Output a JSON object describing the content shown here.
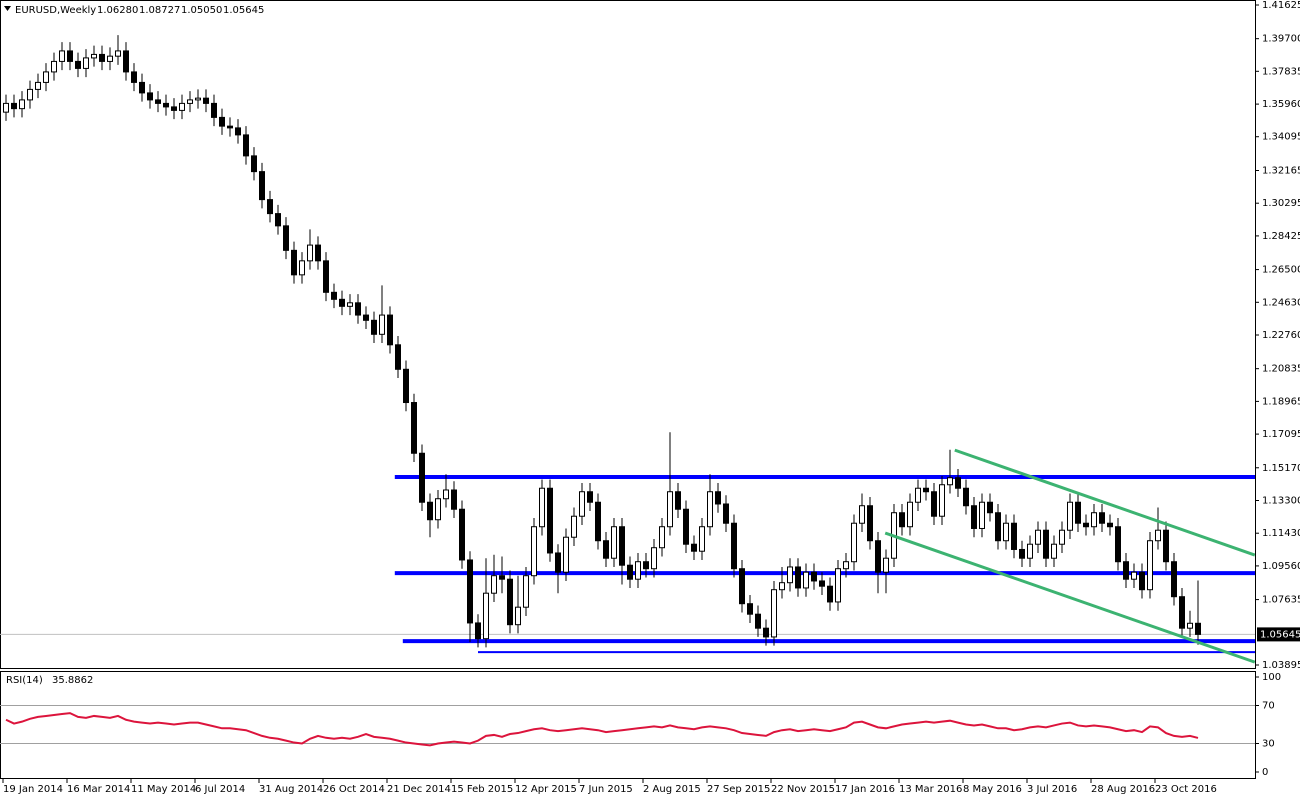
{
  "chart_data": {
    "type": "candlestick",
    "title": "EURUSD,Weekly",
    "ohlc_labels": [
      "1.06280",
      "1.08727",
      "1.05050",
      "1.05645"
    ],
    "categories": [
      "19 Jan 2014",
      null,
      null,
      null,
      null,
      null,
      null,
      null,
      "16 Mar 2014",
      null,
      null,
      null,
      null,
      null,
      null,
      null,
      "11 May 2014",
      null,
      null,
      null,
      null,
      null,
      null,
      null,
      "6 Jul 2014",
      null,
      null,
      null,
      null,
      null,
      null,
      null,
      "31 Aug 2014",
      null,
      null,
      null,
      null,
      null,
      null,
      null,
      "26 Oct 2014",
      null,
      null,
      null,
      null,
      null,
      null,
      null,
      "21 Dec 2014",
      null,
      null,
      null,
      null,
      null,
      null,
      null,
      "15 Feb 2015",
      null,
      null,
      null,
      null,
      null,
      null,
      null,
      "12 Apr 2015",
      null,
      null,
      null,
      null,
      null,
      null,
      null,
      "7 Jun 2015",
      null,
      null,
      null,
      null,
      null,
      null,
      null,
      "2 Aug 2015",
      null,
      null,
      null,
      null,
      null,
      null,
      null,
      "27 Sep 2015",
      null,
      null,
      null,
      null,
      null,
      null,
      null,
      "22 Nov 2015",
      null,
      null,
      null,
      null,
      null,
      null,
      null,
      "17 Jan 2016",
      null,
      null,
      null,
      null,
      null,
      null,
      null,
      "13 Mar 2016",
      null,
      null,
      null,
      null,
      null,
      null,
      null,
      "8 May 2016",
      null,
      null,
      null,
      null,
      null,
      null,
      null,
      "3 Jul 2016",
      null,
      null,
      null,
      null,
      null,
      null,
      null,
      "28 Aug 2016",
      null,
      null,
      null,
      null,
      null,
      null,
      null,
      "23 Oct 2016",
      null,
      null,
      null,
      null,
      null
    ],
    "open": [
      1.355,
      1.36,
      1.357,
      1.362,
      1.368,
      1.372,
      1.378,
      1.384,
      1.39,
      1.384,
      1.38,
      1.386,
      1.388,
      1.384,
      1.387,
      1.39,
      1.378,
      1.372,
      1.366,
      1.362,
      1.36,
      1.358,
      1.356,
      1.36,
      1.362,
      1.363,
      1.36,
      1.352,
      1.347,
      1.346,
      1.342,
      1.33,
      1.321,
      1.305,
      1.297,
      1.29,
      1.276,
      1.262,
      1.27,
      1.279,
      1.27,
      1.252,
      1.248,
      1.244,
      1.246,
      1.239,
      1.236,
      1.228,
      1.239,
      1.222,
      1.208,
      1.189,
      1.16,
      1.132,
      1.122,
      1.134,
      1.139,
      1.128,
      1.099,
      1.063,
      1.054,
      1.08,
      1.09,
      1.088,
      1.062,
      1.072,
      1.09,
      1.118,
      1.14,
      1.103,
      1.092,
      1.112,
      1.124,
      1.138,
      1.132,
      1.11,
      1.1,
      1.118,
      1.096,
      1.088,
      1.098,
      1.094,
      1.106,
      1.118,
      1.138,
      1.128,
      1.108,
      1.104,
      1.118,
      1.138,
      1.131,
      1.12,
      1.094,
      1.074,
      1.068,
      1.06,
      1.055,
      1.082,
      1.086,
      1.095,
      1.083,
      1.092,
      1.087,
      1.084,
      1.075,
      1.094,
      1.098,
      1.12,
      1.13,
      1.11,
      1.092,
      1.1,
      1.126,
      1.118,
      1.132,
      1.14,
      1.138,
      1.124,
      1.142,
      1.146,
      1.14,
      1.13,
      1.117,
      1.132,
      1.126,
      1.11,
      1.12,
      1.105,
      1.1,
      1.108,
      1.116,
      1.1,
      1.108,
      1.116,
      1.132,
      1.12,
      1.118,
      1.126,
      1.12,
      1.118,
      1.098,
      1.088,
      1.092,
      1.082,
      1.11,
      1.116,
      1.098,
      1.078,
      1.06,
      1.0628
    ],
    "high": [
      1.365,
      1.365,
      1.367,
      1.373,
      1.377,
      1.383,
      1.389,
      1.395,
      1.395,
      1.389,
      1.391,
      1.393,
      1.393,
      1.392,
      1.399,
      1.395,
      1.383,
      1.377,
      1.371,
      1.367,
      1.365,
      1.363,
      1.365,
      1.367,
      1.368,
      1.368,
      1.365,
      1.357,
      1.352,
      1.351,
      1.347,
      1.335,
      1.326,
      1.31,
      1.302,
      1.295,
      1.281,
      1.275,
      1.288,
      1.284,
      1.275,
      1.257,
      1.253,
      1.251,
      1.251,
      1.244,
      1.241,
      1.256,
      1.244,
      1.227,
      1.213,
      1.194,
      1.165,
      1.137,
      1.139,
      1.148,
      1.144,
      1.133,
      1.104,
      1.068,
      1.1,
      1.102,
      1.101,
      1.093,
      1.09,
      1.095,
      1.123,
      1.145,
      1.145,
      1.108,
      1.117,
      1.129,
      1.143,
      1.143,
      1.137,
      1.115,
      1.123,
      1.123,
      1.101,
      1.103,
      1.103,
      1.111,
      1.123,
      1.172,
      1.143,
      1.133,
      1.113,
      1.123,
      1.148,
      1.143,
      1.136,
      1.125,
      1.099,
      1.079,
      1.073,
      1.065,
      1.087,
      1.095,
      1.1,
      1.1,
      1.097,
      1.097,
      1.092,
      1.089,
      1.099,
      1.103,
      1.125,
      1.137,
      1.135,
      1.115,
      1.105,
      1.131,
      1.131,
      1.137,
      1.145,
      1.145,
      1.143,
      1.147,
      1.162,
      1.151,
      1.145,
      1.135,
      1.137,
      1.137,
      1.131,
      1.125,
      1.125,
      1.11,
      1.113,
      1.121,
      1.121,
      1.113,
      1.121,
      1.137,
      1.137,
      1.125,
      1.131,
      1.131,
      1.125,
      1.123,
      1.103,
      1.097,
      1.097,
      1.115,
      1.129,
      1.121,
      1.103,
      1.083,
      1.07,
      1.08727
    ],
    "low": [
      1.35,
      1.352,
      1.352,
      1.357,
      1.363,
      1.367,
      1.373,
      1.379,
      1.379,
      1.375,
      1.375,
      1.381,
      1.379,
      1.379,
      1.382,
      1.373,
      1.367,
      1.361,
      1.357,
      1.355,
      1.353,
      1.351,
      1.351,
      1.355,
      1.357,
      1.355,
      1.347,
      1.342,
      1.341,
      1.337,
      1.325,
      1.316,
      1.3,
      1.292,
      1.285,
      1.271,
      1.257,
      1.257,
      1.265,
      1.265,
      1.247,
      1.243,
      1.239,
      1.239,
      1.234,
      1.231,
      1.223,
      1.223,
      1.217,
      1.203,
      1.184,
      1.155,
      1.127,
      1.112,
      1.117,
      1.129,
      1.123,
      1.094,
      1.052,
      1.049,
      1.049,
      1.075,
      1.08,
      1.057,
      1.057,
      1.067,
      1.085,
      1.113,
      1.098,
      1.08,
      1.087,
      1.107,
      1.119,
      1.127,
      1.105,
      1.095,
      1.095,
      1.085,
      1.083,
      1.083,
      1.089,
      1.089,
      1.101,
      1.113,
      1.123,
      1.103,
      1.099,
      1.099,
      1.113,
      1.126,
      1.115,
      1.089,
      1.069,
      1.063,
      1.055,
      1.05,
      1.05,
      1.077,
      1.081,
      1.078,
      1.078,
      1.082,
      1.079,
      1.07,
      1.07,
      1.089,
      1.093,
      1.115,
      1.105,
      1.08,
      1.08,
      1.095,
      1.113,
      1.113,
      1.127,
      1.133,
      1.119,
      1.119,
      1.137,
      1.135,
      1.125,
      1.112,
      1.112,
      1.121,
      1.105,
      1.105,
      1.1,
      1.095,
      1.095,
      1.103,
      1.095,
      1.095,
      1.103,
      1.111,
      1.115,
      1.113,
      1.113,
      1.115,
      1.113,
      1.093,
      1.083,
      1.083,
      1.077,
      1.077,
      1.105,
      1.093,
      1.073,
      1.055,
      1.055,
      1.0505
    ],
    "close": [
      1.36,
      1.357,
      1.362,
      1.368,
      1.372,
      1.378,
      1.384,
      1.39,
      1.384,
      1.38,
      1.386,
      1.388,
      1.384,
      1.387,
      1.39,
      1.378,
      1.372,
      1.366,
      1.362,
      1.36,
      1.358,
      1.356,
      1.36,
      1.362,
      1.363,
      1.36,
      1.352,
      1.347,
      1.346,
      1.342,
      1.33,
      1.321,
      1.305,
      1.297,
      1.29,
      1.276,
      1.262,
      1.27,
      1.279,
      1.27,
      1.252,
      1.248,
      1.244,
      1.246,
      1.239,
      1.236,
      1.228,
      1.239,
      1.222,
      1.208,
      1.189,
      1.16,
      1.132,
      1.122,
      1.134,
      1.139,
      1.128,
      1.099,
      1.063,
      1.054,
      1.08,
      1.09,
      1.088,
      1.062,
      1.072,
      1.09,
      1.118,
      1.14,
      1.103,
      1.092,
      1.112,
      1.124,
      1.138,
      1.132,
      1.11,
      1.1,
      1.118,
      1.096,
      1.088,
      1.098,
      1.094,
      1.106,
      1.118,
      1.138,
      1.128,
      1.108,
      1.104,
      1.118,
      1.138,
      1.131,
      1.12,
      1.094,
      1.074,
      1.068,
      1.06,
      1.055,
      1.082,
      1.086,
      1.095,
      1.083,
      1.092,
      1.087,
      1.084,
      1.075,
      1.094,
      1.098,
      1.12,
      1.13,
      1.11,
      1.092,
      1.1,
      1.126,
      1.118,
      1.132,
      1.14,
      1.138,
      1.124,
      1.142,
      1.146,
      1.14,
      1.13,
      1.117,
      1.132,
      1.126,
      1.11,
      1.12,
      1.105,
      1.1,
      1.108,
      1.116,
      1.1,
      1.108,
      1.116,
      1.132,
      1.12,
      1.118,
      1.126,
      1.12,
      1.118,
      1.098,
      1.088,
      1.092,
      1.082,
      1.11,
      1.116,
      1.098,
      1.078,
      1.06,
      1.0628,
      1.05645
    ],
    "ylim": [
      1.03724,
      1.41911
    ],
    "yticks": [
      {
        "value": 1.41625,
        "label": "1.41625"
      },
      {
        "value": 1.397,
        "label": "1.39700"
      },
      {
        "value": 1.37835,
        "label": "1.37835"
      },
      {
        "value": 1.3596,
        "label": "1.35960"
      },
      {
        "value": 1.34095,
        "label": "1.34095"
      },
      {
        "value": 1.32165,
        "label": "1.32165"
      },
      {
        "value": 1.30295,
        "label": "1.30295"
      },
      {
        "value": 1.28425,
        "label": "1.28425"
      },
      {
        "value": 1.265,
        "label": "1.26500"
      },
      {
        "value": 1.2463,
        "label": "1.24630"
      },
      {
        "value": 1.2276,
        "label": "1.22760"
      },
      {
        "value": 1.20835,
        "label": "1.20835"
      },
      {
        "value": 1.18965,
        "label": "1.18965"
      },
      {
        "value": 1.17095,
        "label": "1.17095"
      },
      {
        "value": 1.1517,
        "label": "1.15170"
      },
      {
        "value": 1.133,
        "label": "1.13300"
      },
      {
        "value": 1.1143,
        "label": "1.11430"
      },
      {
        "value": 1.0956,
        "label": "1.09560"
      },
      {
        "value": 1.07635,
        "label": "1.07635"
      },
      {
        "value": 1.03895,
        "label": "1.03895"
      }
    ],
    "bull_color": "#ffffff",
    "bear_color": "#000000",
    "levels": [
      {
        "value": 1.1464,
        "start": 48.6,
        "color": "#0000ff",
        "width": 4
      },
      {
        "value": 1.0915,
        "start": 48.6,
        "color": "#0000ff",
        "width": 4
      },
      {
        "value": 1.0526,
        "start": 49.6,
        "color": "#0000ff",
        "width": 4
      },
      {
        "value": 1.0463,
        "start": 59,
        "color": "#0000ff",
        "width": 2
      }
    ],
    "trendlines": [
      {
        "x": [
          118.6,
          156.1
        ],
        "y": [
          1.1618,
          1.1018
        ],
        "color": "#3cb371"
      },
      {
        "x": [
          109.9,
          156.1
        ],
        "y": [
          1.1144,
          1.0406
        ],
        "color": "#3cb371"
      }
    ],
    "rsi_title": "RSI(14)",
    "rsi": [
      55,
      51,
      53,
      56,
      58,
      59,
      60,
      61,
      62,
      58,
      57,
      59,
      58,
      57,
      59,
      55,
      53,
      52,
      51,
      52,
      51,
      50,
      51,
      52,
      52,
      50,
      48,
      46,
      46,
      45,
      44,
      41,
      38,
      36,
      35,
      33,
      31,
      30,
      35,
      38,
      36,
      35,
      36,
      35,
      37,
      40,
      37,
      36,
      35,
      33,
      31,
      30,
      29,
      28,
      30,
      31,
      32,
      31,
      30,
      33,
      38,
      39,
      37,
      40,
      41,
      43,
      45,
      46,
      44,
      43,
      44,
      45,
      46,
      45,
      44,
      42,
      43,
      44,
      45,
      46,
      47,
      48,
      47,
      49,
      47,
      46,
      45,
      47,
      48,
      47,
      46,
      44,
      41,
      40,
      39,
      38,
      42,
      44,
      45,
      43,
      44,
      45,
      44,
      43,
      45,
      47,
      52,
      53,
      50,
      47,
      46,
      48,
      50,
      51,
      52,
      53,
      52,
      53,
      54,
      52,
      50,
      49,
      50,
      48,
      46,
      46,
      44,
      45,
      47,
      48,
      47,
      49,
      51,
      52,
      49,
      48,
      49,
      48,
      47,
      45,
      43,
      44,
      42,
      48,
      47,
      41,
      38,
      37,
      38,
      35.8862
    ],
    "rsi_color": "#dc143c",
    "rsi_ylim": [
      0,
      100
    ],
    "rsi_yticks": [
      100,
      70,
      30,
      0
    ],
    "rsi_levels": [
      70,
      30
    ]
  }
}
